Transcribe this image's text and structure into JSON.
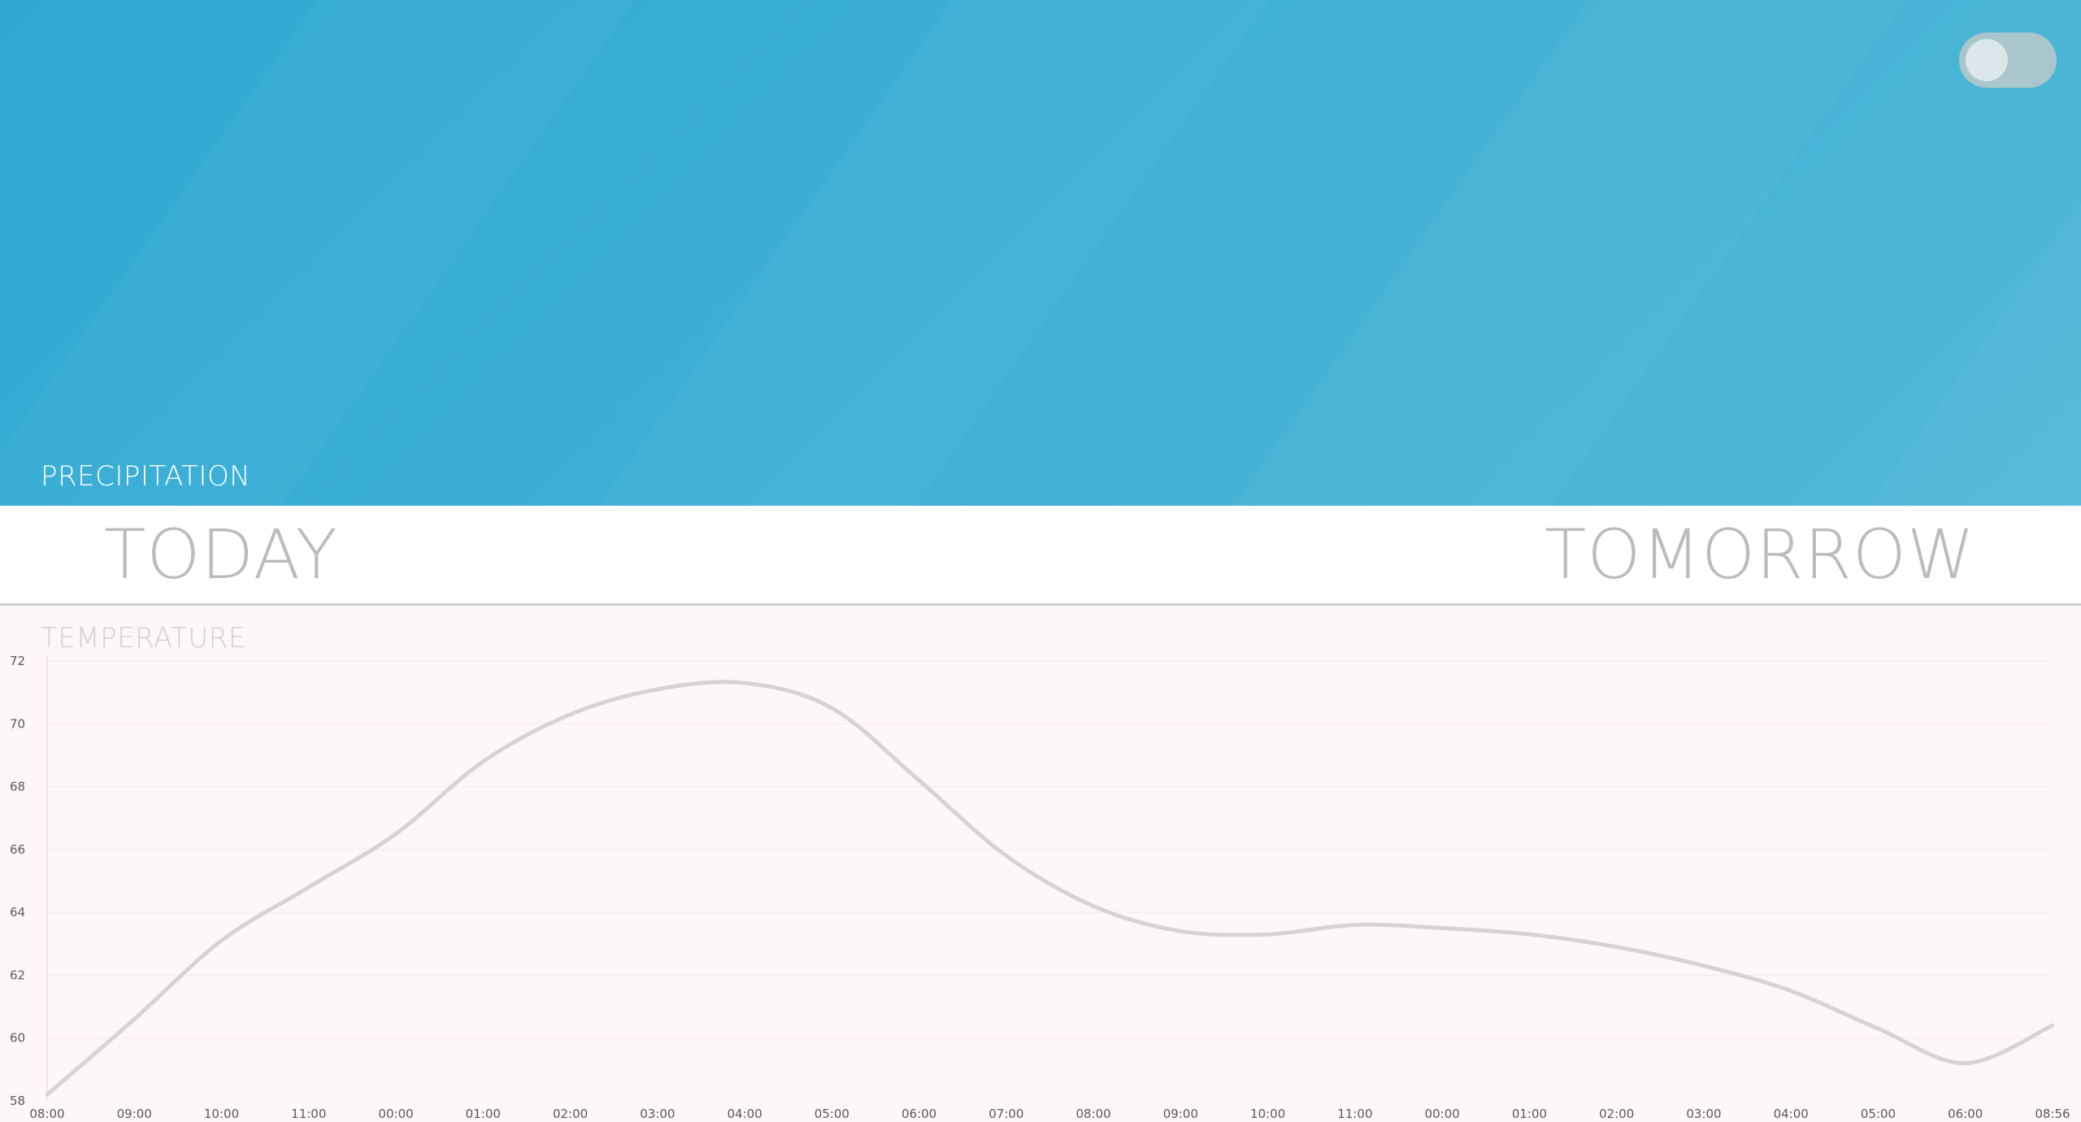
{
  "header": {
    "section_label": "PRECIPITATION"
  },
  "toggle": {
    "state": "off"
  },
  "tabs": {
    "today": "TODAY",
    "tomorrow": "TOMORROW"
  },
  "temperature": {
    "label": "TEMPERATURE"
  },
  "colors": {
    "hero_start": "#2ea8d2",
    "hero_end": "#52b9d8",
    "line": "#d4d4d4",
    "panel_bg": "#fdf7f9"
  },
  "chart_data": {
    "type": "line",
    "ylim": [
      58,
      72
    ],
    "yticks": [
      "58",
      "60",
      "62",
      "64",
      "66",
      "68",
      "70",
      "72"
    ],
    "grid": "horizontal faint",
    "x": [
      "08:00",
      "09:00",
      "10:00",
      "11:00",
      "00:00",
      "01:00",
      "02:00",
      "03:00",
      "04:00",
      "05:00",
      "06:00",
      "07:00",
      "08:00",
      "09:00",
      "10:00",
      "11:00",
      "00:00",
      "01:00",
      "02:00",
      "03:00",
      "04:00",
      "05:00",
      "06:00",
      "08:56"
    ],
    "series": [
      {
        "values": [
          58.2,
          60.6,
          63.1,
          64.8,
          66.5,
          68.8,
          70.3,
          71.1,
          71.3,
          70.5,
          68.2,
          65.8,
          64.2,
          63.4,
          63.3,
          63.6,
          63.5,
          63.3,
          62.9,
          62.3,
          61.5,
          60.3,
          59.2,
          60.4
        ]
      }
    ]
  }
}
